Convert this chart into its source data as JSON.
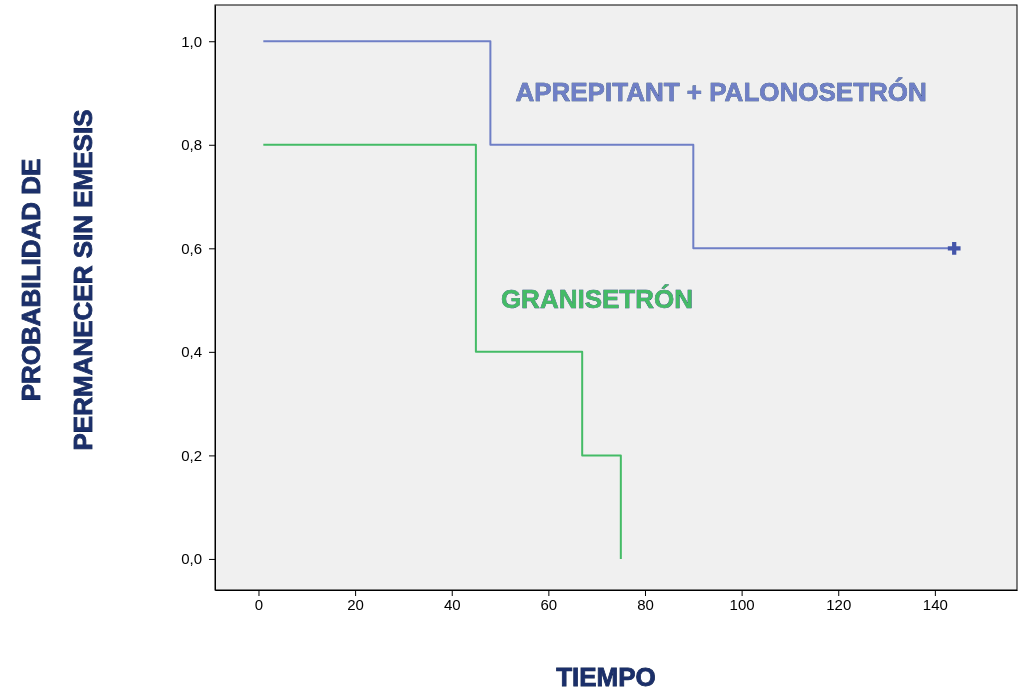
{
  "chart_data": {
    "type": "step",
    "xlabel": "TIEMPO",
    "ylabel": "PROBABILIDAD DE\nPERMANECER SIN EMESIS",
    "xlim": [
      -9,
      157
    ],
    "ylim": [
      -0.06,
      1.07
    ],
    "xticks": [
      0,
      20,
      40,
      60,
      80,
      100,
      120,
      140
    ],
    "yticks": [
      {
        "value": 0,
        "label": "0,0"
      },
      {
        "value": 0.2,
        "label": "0,2"
      },
      {
        "value": 0.4,
        "label": "0,4"
      },
      {
        "value": 0.6,
        "label": "0,6"
      },
      {
        "value": 0.8,
        "label": "0,8"
      },
      {
        "value": 1,
        "label": "1,0"
      }
    ],
    "grid": false,
    "series": [
      {
        "name": "APREPITANT + PALONOSETRÓN",
        "color": "#6f7fc6",
        "x": [
          1,
          48,
          90,
          144
        ],
        "values": [
          1,
          0.8,
          0.6,
          0.6
        ]
      },
      {
        "name": "GRANISETRÓN",
        "color": "#44bb66",
        "x": [
          1,
          45,
          67,
          75
        ],
        "values": [
          0.8,
          0.4,
          0.2,
          0
        ]
      },
      {
        "type": "scatter",
        "marker": "cross",
        "color": "#4455aa",
        "x": [
          144
        ],
        "values": [
          0.6
        ]
      }
    ]
  }
}
